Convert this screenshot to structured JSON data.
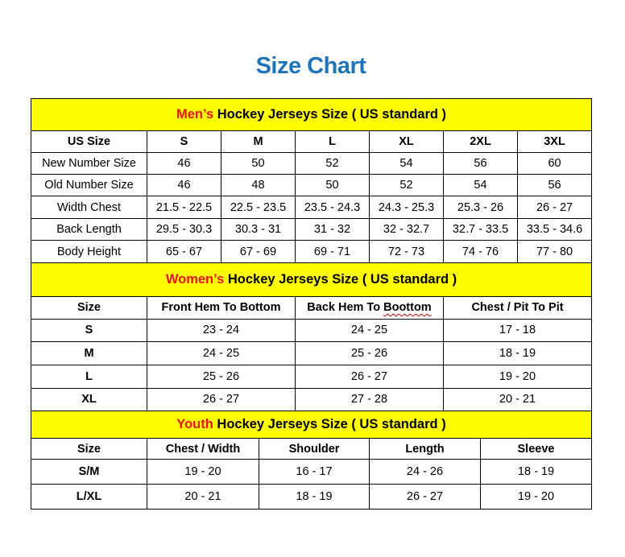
{
  "title": "Size Chart",
  "colors": {
    "title": "#1f74ba",
    "section_header_bg": "#ffff00",
    "highlight": "#e8141b"
  },
  "sections": [
    {
      "id": "men",
      "highlight": "Men’s",
      "heading": "Hockey Jerseys Size ( US standard )",
      "columns": [
        "US Size",
        "S",
        "M",
        "L",
        "XL",
        "2XL",
        "3XL"
      ],
      "rows": [
        [
          "New Number Size",
          "46",
          "50",
          "52",
          "54",
          "56",
          "60"
        ],
        [
          "Old Number Size",
          "46",
          "48",
          "50",
          "52",
          "54",
          "56"
        ],
        [
          "Width Chest",
          "21.5 - 22.5",
          "22.5 - 23.5",
          "23.5 - 24.3",
          "24.3 - 25.3",
          "25.3 - 26",
          "26 - 27"
        ],
        [
          "Back Length",
          "29.5 - 30.3",
          "30.3 - 31",
          "31 - 32",
          "32 - 32.7",
          "32.7 - 33.5",
          "33.5 - 34.6"
        ],
        [
          "Body Height",
          "65 - 67",
          "67 - 69",
          "69 - 71",
          "72 - 73",
          "74 - 76",
          "77 - 80"
        ]
      ]
    },
    {
      "id": "women",
      "highlight": "Women’s",
      "heading": "Hockey Jerseys Size ( US standard )",
      "columns": [
        "Size",
        "Front Hem To Bottom",
        "Back Hem To Boottom",
        "Chest / Pit To Pit"
      ],
      "rows": [
        [
          "S",
          "23 - 24",
          "24 - 25",
          "17 - 18"
        ],
        [
          "M",
          "24 - 25",
          "25 - 26",
          "18 - 19"
        ],
        [
          "L",
          "25 - 26",
          "26 - 27",
          "19 - 20"
        ],
        [
          "XL",
          "26 - 27",
          "27 - 28",
          "20 - 21"
        ]
      ]
    },
    {
      "id": "youth",
      "highlight": "Youth",
      "heading": "Hockey Jerseys Size ( US standard )",
      "columns": [
        "Size",
        "Chest / Width",
        "Shoulder",
        "Length",
        "Sleeve"
      ],
      "rows": [
        [
          "S/M",
          "19 - 20",
          "16 - 17",
          "24 - 26",
          "18 - 19"
        ],
        [
          "L/XL",
          "20 - 21",
          "18 - 19",
          "26 - 27",
          "19 - 20"
        ]
      ]
    }
  ]
}
